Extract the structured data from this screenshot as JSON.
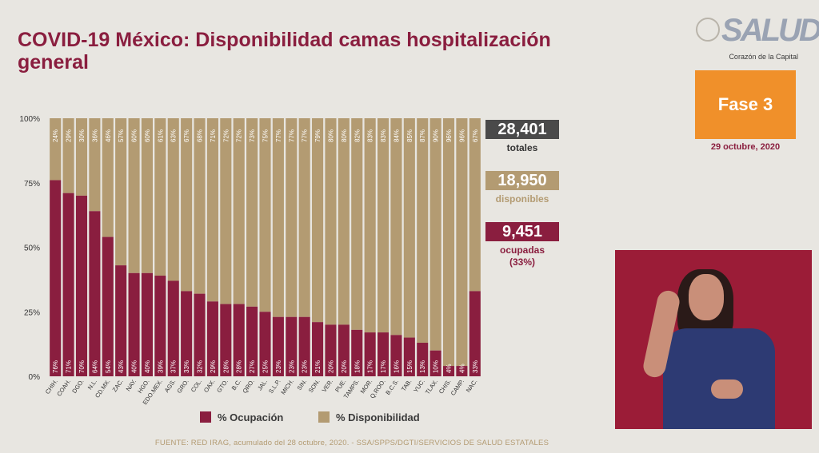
{
  "header": {
    "title": "COVID-19 México: Disponibilidad camas hospitalización general"
  },
  "logo": {
    "mark": "SALUD",
    "caption": "Corazón de la Capital"
  },
  "phase": {
    "label": "Fase 3",
    "date": "29 octubre, 2020"
  },
  "stats": {
    "total": {
      "value": "28,401",
      "label": "totales"
    },
    "available": {
      "value": "18,950",
      "label": "disponibles"
    },
    "occupied": {
      "value": "9,451",
      "label": "ocupadas",
      "sub": "(33%)"
    }
  },
  "source": "FUENTE: RED IRAG, acumulado del 28 octubre, 2020. -  SSA/SPPS/DGTI/SERVICIOS DE SALUD ESTATALES",
  "colors": {
    "occupied": "#8a1e3f",
    "available": "#b39b72",
    "total": "#4a4a4a",
    "phase": "#f0902a"
  },
  "chart_data": {
    "type": "bar",
    "stacked": true,
    "title": "",
    "xlabel": "",
    "ylabel": "",
    "ylim": [
      0,
      100
    ],
    "yticks": [
      "0%",
      "25%",
      "50%",
      "75%",
      "100%"
    ],
    "categories": [
      "CHIH.",
      "COAH.",
      "DGO.",
      "N.L.",
      "CD.MX.",
      "ZAC.",
      "NAY.",
      "HGO.",
      "EDO.MEX.",
      "AGS.",
      "GRO.",
      "COL.",
      "OAX.",
      "GTO.",
      "B.C.",
      "QRO.",
      "JAL.",
      "S.L.P.",
      "MICH.",
      "SIN.",
      "SON.",
      "VER.",
      "PUE.",
      "TAMPS.",
      "MOR.",
      "Q.ROO.",
      "B.C.S.",
      "TAB.",
      "YUC.",
      "TLAX.",
      "CHIS.",
      "CAMP.",
      "NAC."
    ],
    "series": [
      {
        "name": "% Ocupación",
        "color": "#8a1e3f",
        "values": [
          76,
          71,
          70,
          64,
          54,
          43,
          40,
          40,
          39,
          37,
          33,
          32,
          29,
          28,
          28,
          27,
          25,
          23,
          23,
          23,
          21,
          20,
          20,
          18,
          17,
          17,
          16,
          15,
          13,
          10,
          4,
          4,
          33
        ],
        "labels": [
          "76%",
          "71%",
          "70%",
          "64%",
          "54%",
          "43%",
          "40%",
          "40%",
          "39%",
          "37%",
          "33%",
          "32%",
          "29%",
          "28%",
          "28%",
          "27%",
          "25%",
          "23%",
          "23%",
          "23%",
          "21%",
          "20%",
          "20%",
          "18%",
          "17%",
          "17%",
          "16%",
          "15%",
          "13%",
          "10%",
          "4%",
          "4%",
          "33%"
        ]
      },
      {
        "name": "% Disponibilidad",
        "color": "#b39b72",
        "values": [
          24,
          29,
          30,
          36,
          46,
          57,
          60,
          60,
          61,
          63,
          67,
          68,
          71,
          72,
          72,
          73,
          75,
          77,
          77,
          77,
          79,
          80,
          80,
          82,
          83,
          83,
          84,
          85,
          87,
          90,
          96,
          96,
          67
        ],
        "labels": [
          "24%",
          "29%",
          "30%",
          "36%",
          "46%",
          "57%",
          "60%",
          "60%",
          "61%",
          "63%",
          "67%",
          "68%",
          "71%",
          "72%",
          "72%",
          "73%",
          "75%",
          "77%",
          "77%",
          "77%",
          "79%",
          "80%",
          "80%",
          "82%",
          "83%",
          "83%",
          "84%",
          "85%",
          "87%",
          "90%",
          "96%",
          "96%",
          "67%"
        ]
      }
    ],
    "legend": "bottom",
    "grid": false
  }
}
